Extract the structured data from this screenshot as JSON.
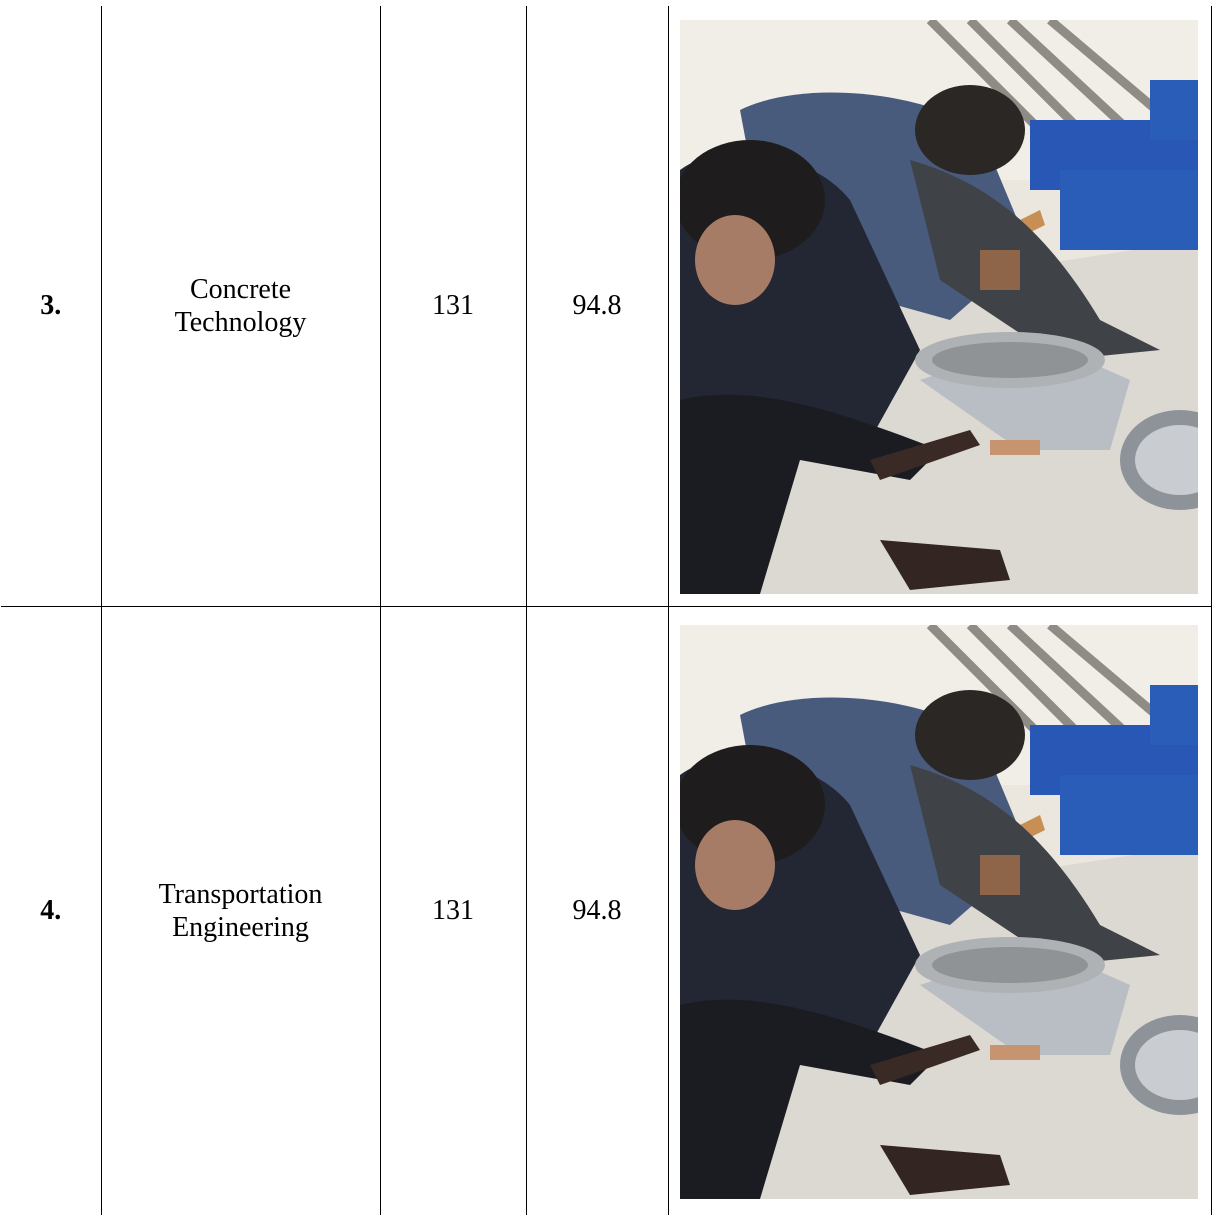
{
  "rows": [
    {
      "sno": "3.",
      "subject_line1": "Concrete",
      "subject_line2": "Technology",
      "students": "131",
      "percentage": "94.8",
      "photo": "lab-activity-photo"
    },
    {
      "sno": "4.",
      "subject_line1": "Transportation",
      "subject_line2": "Engineering",
      "students": "131",
      "percentage": "94.8",
      "photo": "lab-activity-photo"
    }
  ]
}
